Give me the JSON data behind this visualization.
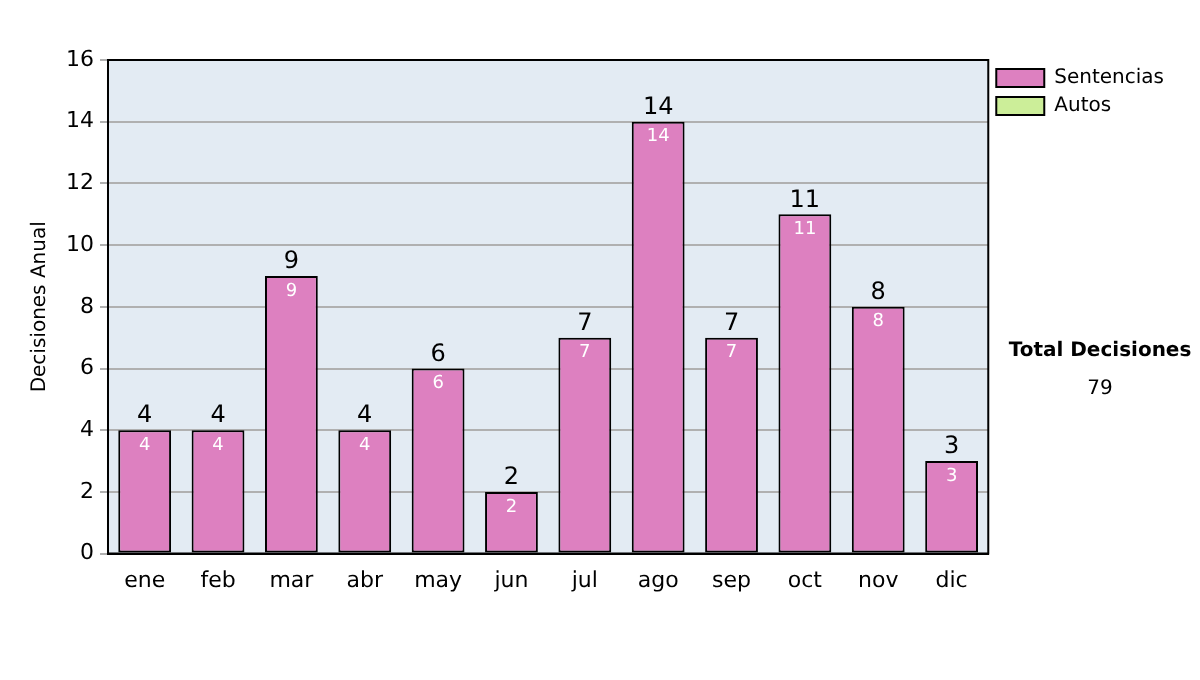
{
  "chart_data": {
    "type": "bar",
    "stacked": true,
    "ylabel": "Decisiones Anual",
    "categories": [
      "ene",
      "feb",
      "mar",
      "abr",
      "may",
      "jun",
      "jul",
      "ago",
      "sep",
      "oct",
      "nov",
      "dic"
    ],
    "series": [
      {
        "name": "Sentencias",
        "color": "#dd80c0",
        "values": [
          4,
          4,
          9,
          4,
          6,
          2,
          7,
          14,
          7,
          11,
          8,
          3
        ],
        "value_labels": [
          "4",
          "4",
          "9",
          "4",
          "6",
          "2",
          "7",
          "14",
          "7",
          "11",
          "8",
          "3"
        ]
      },
      {
        "name": "Autos",
        "color": "#ccee99",
        "values": [
          0,
          0,
          0,
          0,
          0,
          0,
          0,
          0,
          0,
          0,
          0,
          0
        ]
      }
    ],
    "totals": [
      "4",
      "4",
      "9",
      "4",
      "6",
      "2",
      "7",
      "14",
      "7",
      "11",
      "8",
      "3"
    ],
    "ylim": [
      0,
      16
    ],
    "yticks": [
      0,
      2,
      4,
      6,
      8,
      10,
      12,
      14,
      16
    ],
    "grid": "y",
    "legend": "right",
    "annotations": [
      "Total Decisiones",
      "79"
    ]
  }
}
